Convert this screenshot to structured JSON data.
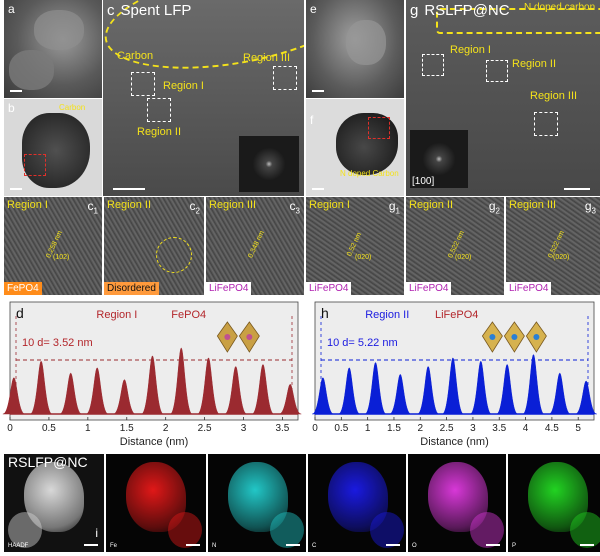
{
  "panels": {
    "a": "a",
    "b": "b",
    "c": "c",
    "e": "e",
    "f": "f",
    "g": "g",
    "d": "d",
    "h": "h",
    "i": "i"
  },
  "c_title": "Spent LFP",
  "g_title": "RSLFP@NC",
  "labels": {
    "carbon": "Carbon",
    "carbon_b": "Carbon",
    "n_doped_carbon_g": "N doped carbon",
    "n_doped_carbon_f": "N doped Carbon",
    "region1": "Region I",
    "region2": "Region II",
    "region3": "Region III",
    "zone_axis": "[100]"
  },
  "hr_panels": [
    {
      "letter": "c",
      "sub": "1",
      "region": "Region I",
      "tag": "FePO4",
      "d_value": "0.258 nm",
      "plane": "(102)",
      "tag_bg": "#ff8c1a",
      "tag_color": "#ffffff"
    },
    {
      "letter": "c",
      "sub": "2",
      "region": "Region II",
      "tag": "Disordered",
      "d_value": "",
      "plane": "",
      "tag_bg": "#ff9a3c",
      "tag_color": "#111111"
    },
    {
      "letter": "c",
      "sub": "3",
      "region": "Region III",
      "tag": "LiFePO4",
      "d_value": "0.348 nm",
      "plane": "",
      "tag_bg": "#ffffff",
      "tag_color": "#b020b0"
    },
    {
      "letter": "g",
      "sub": "1",
      "region": "Region I",
      "tag": "LiFePO4",
      "d_value": "0.52 nm",
      "plane": "(020)",
      "tag_bg": "#ffffff",
      "tag_color": "#b020b0"
    },
    {
      "letter": "g",
      "sub": "2",
      "region": "Region II",
      "tag": "LiFePO4",
      "d_value": "0.522 nm",
      "plane": "(020)",
      "tag_bg": "#ffffff",
      "tag_color": "#b020b0"
    },
    {
      "letter": "g",
      "sub": "3",
      "region": "Region III",
      "tag": "LiFePO4",
      "d_value": "0.522 nm",
      "plane": "(020)",
      "tag_bg": "#ffffff",
      "tag_color": "#b020b0"
    }
  ],
  "chart_data": [
    {
      "type": "area",
      "panel": "d",
      "annotation_region": "Region I",
      "annotation_phase": "FePO4",
      "annotation_d": "10 d= 3.52 nm",
      "xlabel": "Distance (nm)",
      "xlim": [
        0,
        3.7
      ],
      "xticks": [
        "0",
        "0.5",
        "1",
        "1.5",
        "2",
        "2.5",
        "3",
        "3.5"
      ],
      "color": "#9b2a30",
      "peak_x": [
        0.05,
        0.4,
        0.78,
        1.12,
        1.47,
        1.83,
        2.2,
        2.55,
        2.9,
        3.25,
        3.6
      ],
      "peak_heights": [
        0.55,
        0.8,
        0.62,
        0.7,
        0.52,
        0.88,
        1.0,
        0.85,
        0.72,
        0.75,
        0.45
      ]
    },
    {
      "type": "area",
      "panel": "h",
      "annotation_region": "Region II",
      "annotation_phase": "LiFePO4",
      "annotation_d": "10 d= 5.22 nm",
      "xlabel": "Distance (nm)",
      "xlim": [
        0,
        5.3
      ],
      "xticks": [
        "0",
        "0.5",
        "1",
        "1.5",
        "2",
        "2.5",
        "3",
        "3.5",
        "4",
        "4.5",
        "5"
      ],
      "color": "#0a1fd6",
      "peak_x": [
        0.15,
        0.65,
        1.15,
        1.62,
        2.15,
        2.62,
        3.15,
        3.65,
        4.15,
        4.65,
        5.15
      ],
      "peak_heights": [
        0.55,
        0.7,
        0.78,
        0.6,
        0.72,
        0.85,
        0.8,
        0.75,
        0.9,
        0.62,
        0.5
      ]
    }
  ],
  "eds": {
    "title": "RSLFP@NC",
    "maps": [
      {
        "label": "HAADF",
        "color": "#d8d8d8"
      },
      {
        "label": "Fe",
        "color": "#e01818"
      },
      {
        "label": "N",
        "color": "#22c7c7"
      },
      {
        "label": "C",
        "color": "#1a1ae0"
      },
      {
        "label": "O",
        "color": "#d838d8"
      },
      {
        "label": "P",
        "color": "#22d322"
      }
    ]
  }
}
